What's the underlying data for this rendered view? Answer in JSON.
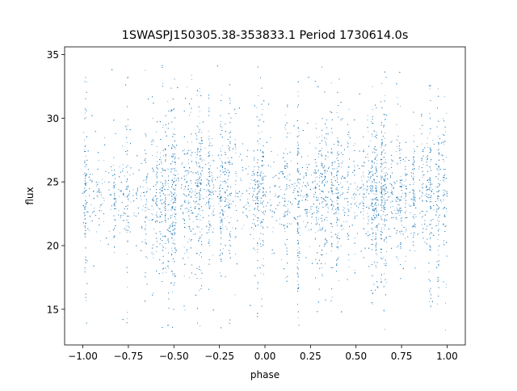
{
  "chart_data": {
    "type": "scatter",
    "title": "1SWASPJ150305.38-353833.1 Period 1730614.0s",
    "xlabel": "phase",
    "ylabel": "flux",
    "xlim": [
      -1.1,
      1.1
    ],
    "ylim": [
      12.2,
      35.6
    ],
    "xticks": [
      -1.0,
      -0.75,
      -0.5,
      -0.25,
      0.0,
      0.25,
      0.5,
      0.75,
      1.0
    ],
    "xtick_labels": [
      "−1.00",
      "−0.75",
      "−0.50",
      "−0.25",
      "0.00",
      "0.25",
      "0.50",
      "0.75",
      "1.00"
    ],
    "yticks": [
      15,
      20,
      25,
      30,
      35
    ],
    "ytick_labels": [
      "15",
      "20",
      "25",
      "30",
      "35"
    ],
    "grid": false,
    "legend": "none",
    "point_color": "#1f77b4",
    "x_range_of_data": [
      -1.0,
      1.0
    ],
    "y_center": 24.0,
    "y_typical_range": [
      18.5,
      30.0
    ],
    "y_extreme_range": [
      13.0,
      34.5
    ],
    "series": [
      {
        "x": [
          -1.0,
          -0.98,
          -0.96,
          -0.95,
          -0.94,
          -0.92,
          -0.9,
          -0.88,
          -0.86,
          -0.85,
          -0.84,
          -0.82,
          -0.8,
          -0.78,
          -0.76,
          -0.75,
          -0.74,
          -0.72,
          -0.7,
          -0.68,
          -0.66,
          -0.65,
          -0.64,
          -0.62,
          -0.6,
          -0.58,
          -0.56,
          -0.55,
          -0.54,
          -0.52,
          -0.5,
          -0.48,
          -0.46,
          -0.45,
          -0.44,
          -0.42,
          -0.4,
          -0.38,
          -0.36,
          -0.35,
          -0.34,
          -0.32,
          -0.3,
          -0.28,
          -0.26,
          -0.25,
          -0.24,
          -0.22,
          -0.2,
          -0.18,
          -0.16,
          -0.15,
          -0.14,
          -0.12,
          -0.1,
          -0.08,
          -0.06,
          -0.05,
          -0.04,
          -0.02,
          0.0,
          0.02,
          0.04,
          0.05,
          0.06,
          0.08,
          0.1,
          0.12,
          0.14,
          0.15,
          0.16,
          0.18,
          0.2,
          0.22,
          0.24,
          0.25,
          0.26,
          0.28,
          0.3,
          0.32,
          0.34,
          0.35,
          0.36,
          0.38,
          0.4,
          0.42,
          0.44,
          0.45,
          0.46,
          0.48,
          0.5,
          0.52,
          0.54,
          0.55,
          0.56,
          0.58,
          0.6,
          0.62,
          0.64,
          0.65,
          0.66,
          0.68,
          0.7,
          0.72,
          0.74,
          0.75,
          0.76,
          0.78,
          0.8,
          0.82,
          0.84,
          0.85,
          0.86,
          0.88,
          0.9,
          0.92,
          0.94,
          0.95,
          0.96,
          0.98,
          1.0
        ],
        "y": [
          24.1,
          25.6,
          22.3,
          30.2,
          18.4,
          24.8,
          23.2,
          27.9,
          20.1,
          24.0,
          33.8,
          22.9,
          25.4,
          14.2,
          24.6,
          21.8,
          29.1,
          23.5,
          24.3,
          19.6,
          26.7,
          24.2,
          31.5,
          22.0,
          23.9,
          17.8,
          25.9,
          24.4,
          28.6,
          21.1,
          24.0,
          32.4,
          23.1,
          19.0,
          25.2,
          24.7,
          27.3,
          16.1,
          23.6,
          24.9,
          29.7,
          21.5,
          24.2,
          22.4,
          34.1,
          24.5,
          18.9,
          25.8,
          23.0,
          26.4,
          20.7,
          24.1,
          30.8,
          22.6,
          24.3,
          15.3,
          25.1,
          23.8,
          28.2,
          21.9,
          24.0,
          31.1,
          22.7,
          19.4,
          25.5,
          24.6,
          26.9,
          17.2,
          23.4,
          24.8,
          29.4,
          21.2,
          24.3,
          22.8,
          33.2,
          24.4,
          18.6,
          25.7,
          23.3,
          26.1,
          20.4,
          24.2,
          30.5,
          22.5,
          24.1,
          14.8,
          25.3,
          23.7,
          28.9,
          21.6,
          24.0,
          31.9,
          22.9,
          19.8,
          25.0,
          24.5,
          27.6,
          16.7,
          23.6,
          24.7,
          29.9,
          21.3,
          24.2,
          22.2,
          33.6,
          24.6,
          18.2,
          25.6,
          23.1,
          26.6,
          20.9,
          24.3,
          30.3,
          22.4,
          24.0,
          15.6,
          25.4,
          23.9,
          28.4,
          21.7,
          24.1
        ]
      }
    ]
  }
}
